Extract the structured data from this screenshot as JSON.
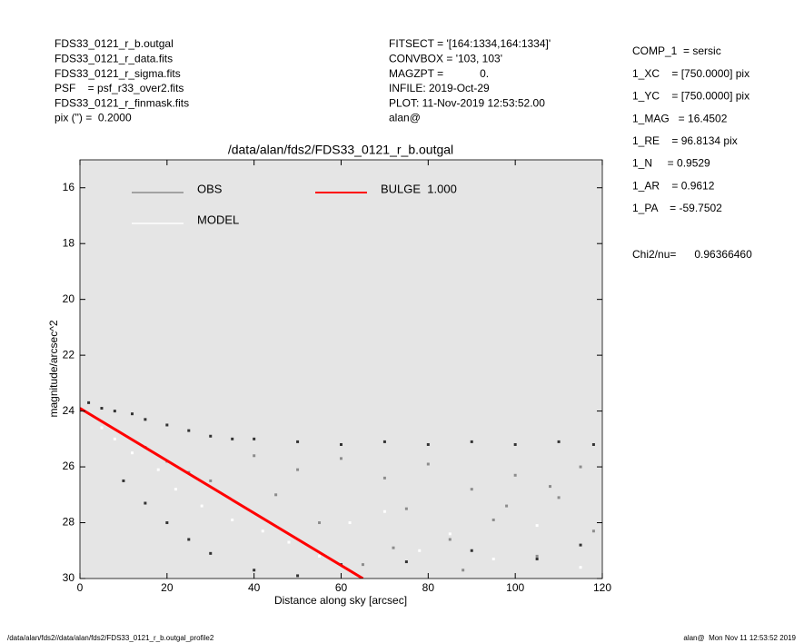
{
  "header": {
    "left": [
      "FDS33_0121_r_b.outgal",
      "FDS33_0121_r_data.fits",
      "FDS33_0121_r_sigma.fits",
      "PSF    = psf_r33_over2.fits",
      "FDS33_0121_r_finmask.fits",
      "pix (\") =  0.2000"
    ],
    "middle": [
      "FITSECT = '[164:1334,164:1334]'",
      "CONVBOX = '103, 103'",
      "MAGZPT =            0.",
      "INFILE: 2019-Oct-29",
      "PLOT: 11-Nov-2019 12:53:52.00",
      "alan@"
    ],
    "right": [
      "COMP_1  = sersic",
      "1_XC    = [750.0000] pix",
      "1_YC    = [750.0000] pix",
      "1_MAG   = 16.4502",
      "1_RE    = 96.8134 pix",
      "1_N     = 0.9529",
      "1_AR    = 0.9612",
      "1_PA    = -59.7502"
    ],
    "chi2": "Chi2/nu=      0.96366460"
  },
  "footer": {
    "left": "/data/alan/fds2//data/alan/fds2/FDS33_0121_r_b.outgal_profile2",
    "right": "alan@  Mon Nov 11 12:53:52 2019"
  },
  "chart_data": {
    "type": "scatter",
    "title": "/data/alan/fds2/FDS33_0121_r_b.outgal",
    "x_label": "Distance along sky [arcsec]",
    "y_label": "magnitude/arcsec^2",
    "xlim": [
      0,
      120
    ],
    "ylim": [
      30,
      15
    ],
    "xticks": [
      0,
      20,
      40,
      60,
      80,
      100,
      120
    ],
    "yticks": [
      16,
      18,
      20,
      22,
      24,
      26,
      28,
      30
    ],
    "background": "#e5e5e5",
    "series": [
      {
        "name": "OBS",
        "color": "#8c8c8c",
        "marker": "point",
        "x": [
          15,
          20,
          25,
          30,
          40,
          45,
          50,
          55,
          60,
          70,
          75,
          80,
          85,
          90,
          95,
          100,
          105,
          110,
          115,
          118,
          65,
          72,
          88,
          98,
          108
        ],
        "values": [
          25.3,
          25.8,
          26.2,
          26.5,
          25.6,
          27.0,
          26.1,
          28.0,
          25.7,
          26.4,
          27.5,
          25.9,
          28.6,
          26.8,
          27.9,
          26.3,
          29.2,
          27.1,
          26.0,
          28.3,
          29.5,
          28.9,
          29.7,
          27.4,
          26.7
        ]
      },
      {
        "name": "MODEL",
        "color": "#ffffff",
        "marker": "point",
        "x": [
          5,
          8,
          12,
          18,
          22,
          28,
          35,
          42,
          48,
          55,
          62,
          70,
          78,
          85,
          95,
          105,
          115
        ],
        "values": [
          24.6,
          25.0,
          25.5,
          26.1,
          26.8,
          27.4,
          27.9,
          28.3,
          28.7,
          29.2,
          28.0,
          27.6,
          29.0,
          28.4,
          29.3,
          28.1,
          29.6
        ]
      },
      {
        "name": "BULGE  1.000",
        "color": "#ff0000",
        "marker": "line",
        "x": [
          0,
          65
        ],
        "values": [
          23.9,
          30
        ]
      },
      {
        "color": "#333333",
        "marker": "point",
        "x": [
          2,
          5,
          8,
          12,
          15,
          20,
          25,
          30,
          35,
          40,
          50,
          60,
          70,
          80,
          90,
          100,
          110,
          118,
          10,
          15,
          20,
          25,
          30,
          40,
          50,
          60,
          75,
          90,
          105,
          115
        ],
        "values": [
          23.7,
          23.9,
          24.0,
          24.1,
          24.3,
          24.5,
          24.7,
          24.9,
          25.0,
          25.0,
          25.1,
          25.2,
          25.1,
          25.2,
          25.1,
          25.2,
          25.1,
          25.2,
          26.5,
          27.3,
          28.0,
          28.6,
          29.1,
          29.7,
          29.9,
          29.5,
          29.4,
          29.0,
          29.3,
          28.8
        ]
      }
    ]
  }
}
